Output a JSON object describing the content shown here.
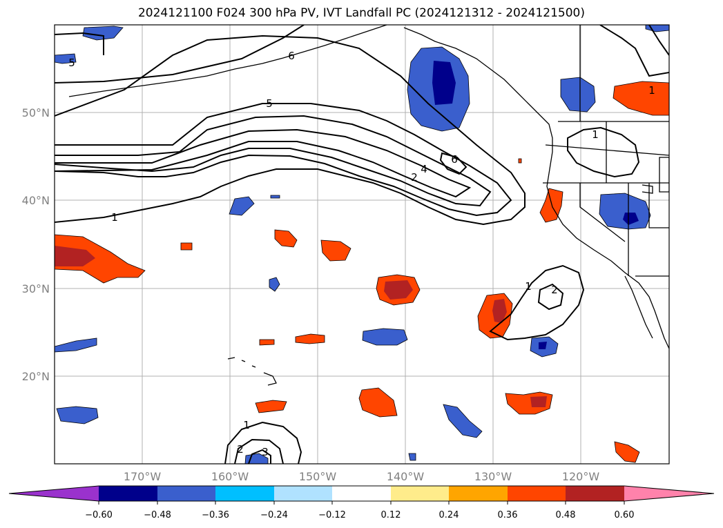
{
  "title": "2024121100 F024 300 hPa PV, IVT Landfall PC (2024121312 - 2024121500)",
  "map": {
    "lon_labels": [
      "170°W",
      "160°W",
      "150°W",
      "140°W",
      "130°W",
      "120°W"
    ],
    "lat_labels": [
      "50°N",
      "40°N",
      "30°N",
      "20°N"
    ],
    "contour_labels": [
      "5",
      "6",
      "5",
      "1",
      "6",
      "4",
      "2",
      "1",
      "1",
      "2",
      "1",
      "2",
      "3",
      "1"
    ]
  },
  "colorbar": {
    "ticks": [
      "−0.60",
      "−0.48",
      "−0.36",
      "−0.24",
      "−0.12",
      "0.12",
      "0.24",
      "0.36",
      "0.48",
      "0.60"
    ],
    "colors": [
      "#9a32cd",
      "#00008b",
      "#3a5fcd",
      "#00bfff",
      "#b0e2ff",
      "#ffffff",
      "#ffec8b",
      "#ffa500",
      "#ff4500",
      "#b22222",
      "#ff82ab"
    ]
  }
}
